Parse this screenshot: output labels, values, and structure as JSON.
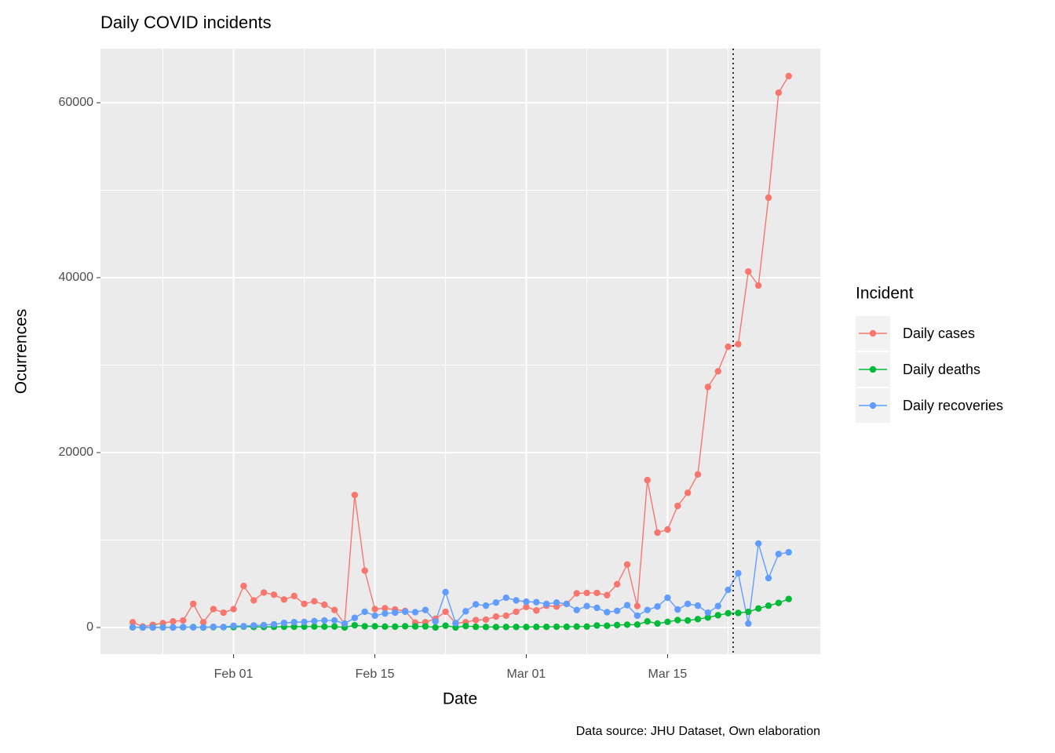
{
  "chart_data": {
    "type": "line",
    "title": "Daily COVID incidents",
    "x_label": "Date",
    "y_label": "Ocurrences",
    "caption": "Data source: JHU Dataset, Own elaboration",
    "legend_title": "Incident",
    "legend_position": "right",
    "grid": true,
    "vline": "Mar 21 12:00",
    "x": [
      "Jan 22",
      "Jan 23",
      "Jan 24",
      "Jan 25",
      "Jan 26",
      "Jan 27",
      "Jan 28",
      "Jan 29",
      "Jan 30",
      "Jan 31",
      "Feb 01",
      "Feb 02",
      "Feb 03",
      "Feb 04",
      "Feb 05",
      "Feb 06",
      "Feb 07",
      "Feb 08",
      "Feb 09",
      "Feb 10",
      "Feb 11",
      "Feb 12",
      "Feb 13",
      "Feb 14",
      "Feb 15",
      "Feb 16",
      "Feb 17",
      "Feb 18",
      "Feb 19",
      "Feb 20",
      "Feb 21",
      "Feb 22",
      "Feb 23",
      "Feb 24",
      "Feb 25",
      "Feb 26",
      "Feb 27",
      "Feb 28",
      "Feb 29",
      "Mar 01",
      "Mar 02",
      "Mar 03",
      "Mar 04",
      "Mar 05",
      "Mar 06",
      "Mar 07",
      "Mar 08",
      "Mar 09",
      "Mar 10",
      "Mar 11",
      "Mar 12",
      "Mar 13",
      "Mar 14",
      "Mar 15",
      "Mar 16",
      "Mar 17",
      "Mar 18",
      "Mar 19",
      "Mar 20",
      "Mar 21",
      "Mar 22",
      "Mar 23",
      "Mar 24",
      "Mar 25",
      "Mar 26",
      "Mar 27"
    ],
    "xlim": [
      "Jan 18 19:30",
      "Mar 30 03:10"
    ],
    "xticks": [
      "Feb 01",
      "Feb 15",
      "Mar 01",
      "Mar 15"
    ],
    "ylim": [
      -3050,
      66190
    ],
    "yticks": [
      0,
      20000,
      40000,
      60000
    ],
    "series": [
      {
        "name": "Daily cases",
        "color": "#F8766D",
        "values": [
          600,
          100,
          300,
          500,
          700,
          800,
          2700,
          600,
          2100,
          1700,
          2100,
          4750,
          3100,
          4000,
          3750,
          3200,
          3600,
          2700,
          3000,
          2600,
          2000,
          400,
          15150,
          6500,
          2100,
          2200,
          2050,
          1900,
          550,
          600,
          1000,
          1800,
          500,
          600,
          850,
          900,
          1250,
          1350,
          1800,
          2350,
          1950,
          2500,
          2400,
          2700,
          3900,
          3950,
          3950,
          3700,
          4950,
          7200,
          2450,
          16850,
          10850,
          11200,
          13900,
          15400,
          17500,
          27500,
          29300,
          32100,
          32400,
          40700,
          39100,
          49150,
          61150,
          63050
        ]
      },
      {
        "name": "Daily deaths",
        "color": "#00BA38",
        "values": [
          17,
          1,
          8,
          16,
          14,
          26,
          49,
          2,
          38,
          42,
          46,
          103,
          64,
          66,
          73,
          86,
          89,
          97,
          108,
          97,
          110,
          5,
          255,
          143,
          142,
          105,
          98,
          139,
          115,
          125,
          4,
          207,
          11,
          160,
          80,
          60,
          48,
          62,
          65,
          56,
          66,
          72,
          84,
          80,
          102,
          103,
          229,
          202,
          279,
          317,
          331,
          696,
          451,
          642,
          850,
          800,
          960,
          1144,
          1400,
          1630,
          1660,
          1790,
          2170,
          2490,
          2810,
          3260
        ]
      },
      {
        "name": "Daily recoveries",
        "color": "#619CFF",
        "values": [
          28,
          2,
          6,
          3,
          10,
          46,
          19,
          17,
          79,
          62,
          188,
          151,
          229,
          272,
          363,
          524,
          605,
          628,
          736,
          800,
          800,
          450,
          1100,
          1800,
          1350,
          1600,
          1700,
          1800,
          1750,
          2000,
          700,
          4050,
          500,
          1850,
          2650,
          2500,
          2850,
          3400,
          3100,
          2950,
          2900,
          2700,
          2850,
          2700,
          2000,
          2450,
          2250,
          1750,
          1900,
          2550,
          1350,
          2000,
          2400,
          3400,
          2050,
          2700,
          2500,
          1700,
          2450,
          4300,
          6200,
          450,
          9600,
          5650,
          8400,
          8600
        ]
      }
    ]
  }
}
